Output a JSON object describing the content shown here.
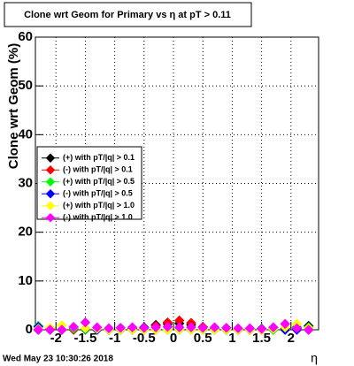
{
  "chart_data": {
    "type": "scatter",
    "title": "Clone wrt Geom for Primary vs   η at pT > 0.11",
    "y_label": "Clone wrt Geom (%)",
    "x_label": "η",
    "timestamp": "Wed May 23 10:30:26 2018",
    "x": [
      -2.3,
      -2.1,
      -1.9,
      -1.7,
      -1.5,
      -1.3,
      -1.1,
      -0.9,
      -0.7,
      -0.5,
      -0.3,
      -0.1,
      0.1,
      0.3,
      0.5,
      0.7,
      0.9,
      1.1,
      1.3,
      1.5,
      1.7,
      1.9,
      2.1,
      2.3
    ],
    "series": [
      {
        "name": "(+) with pT/|q| > 0.1",
        "color": "#000000",
        "values": [
          0,
          0,
          0,
          0,
          0,
          0,
          0,
          0,
          0.2,
          0.5,
          1,
          1.2,
          1.3,
          1,
          0.5,
          0.2,
          0,
          0,
          0,
          0,
          0,
          0.3,
          0.5,
          0.8
        ]
      },
      {
        "name": "(-) with pT/|q| > 0.1",
        "color": "#ff0000",
        "values": [
          0,
          0.2,
          0,
          0,
          0,
          0,
          0,
          0,
          0,
          0.3,
          0.8,
          1.5,
          1.9,
          1.4,
          0.6,
          0.2,
          0,
          0,
          0,
          0,
          0,
          0,
          0.2,
          0
        ]
      },
      {
        "name": "(+) with pT/|q| > 0.5",
        "color": "#00ff00",
        "values": [
          0.8,
          0.3,
          0,
          0.2,
          0,
          0,
          0,
          0,
          0,
          0,
          0,
          0,
          0,
          0,
          0,
          0,
          0,
          0,
          0,
          0.3,
          0,
          0,
          0.4,
          0.5
        ]
      },
      {
        "name": "(-) with pT/|q| > 0.5",
        "color": "#0000ff",
        "values": [
          0.6,
          0,
          0,
          0.4,
          0.2,
          0,
          0,
          0,
          0,
          0,
          0,
          0,
          0,
          0,
          0,
          0,
          0,
          0,
          0,
          0.2,
          0.4,
          0,
          0,
          0
        ]
      },
      {
        "name": "(+) with pT/|q| > 1.0",
        "color": "#ffff00",
        "values": [
          0.2,
          0.4,
          0.9,
          0.5,
          0.3,
          0.2,
          0,
          0,
          0,
          0,
          0,
          0,
          0,
          0,
          0,
          0,
          0,
          0,
          0,
          0,
          0.2,
          0.5,
          1.2,
          0.3
        ]
      },
      {
        "name": "(-) with pT/|q| > 1.0",
        "color": "#ff00ff",
        "values": [
          0,
          0,
          0,
          0.6,
          1.5,
          0.5,
          0.3,
          0.4,
          0.5,
          0.4,
          0.5,
          0.6,
          0.5,
          0.5,
          0.4,
          0.5,
          0.4,
          0.3,
          0.3,
          0.2,
          0.5,
          1.2,
          0.3,
          0
        ]
      }
    ],
    "xlim": [
      -2.35,
      2.47
    ],
    "ylim": [
      0,
      60
    ],
    "xticks": [
      -2,
      -1.5,
      -1,
      -0.5,
      0,
      0.5,
      1,
      1.5,
      2
    ],
    "yticks": [
      0,
      10,
      20,
      30,
      40,
      50,
      60
    ],
    "grid": true
  }
}
